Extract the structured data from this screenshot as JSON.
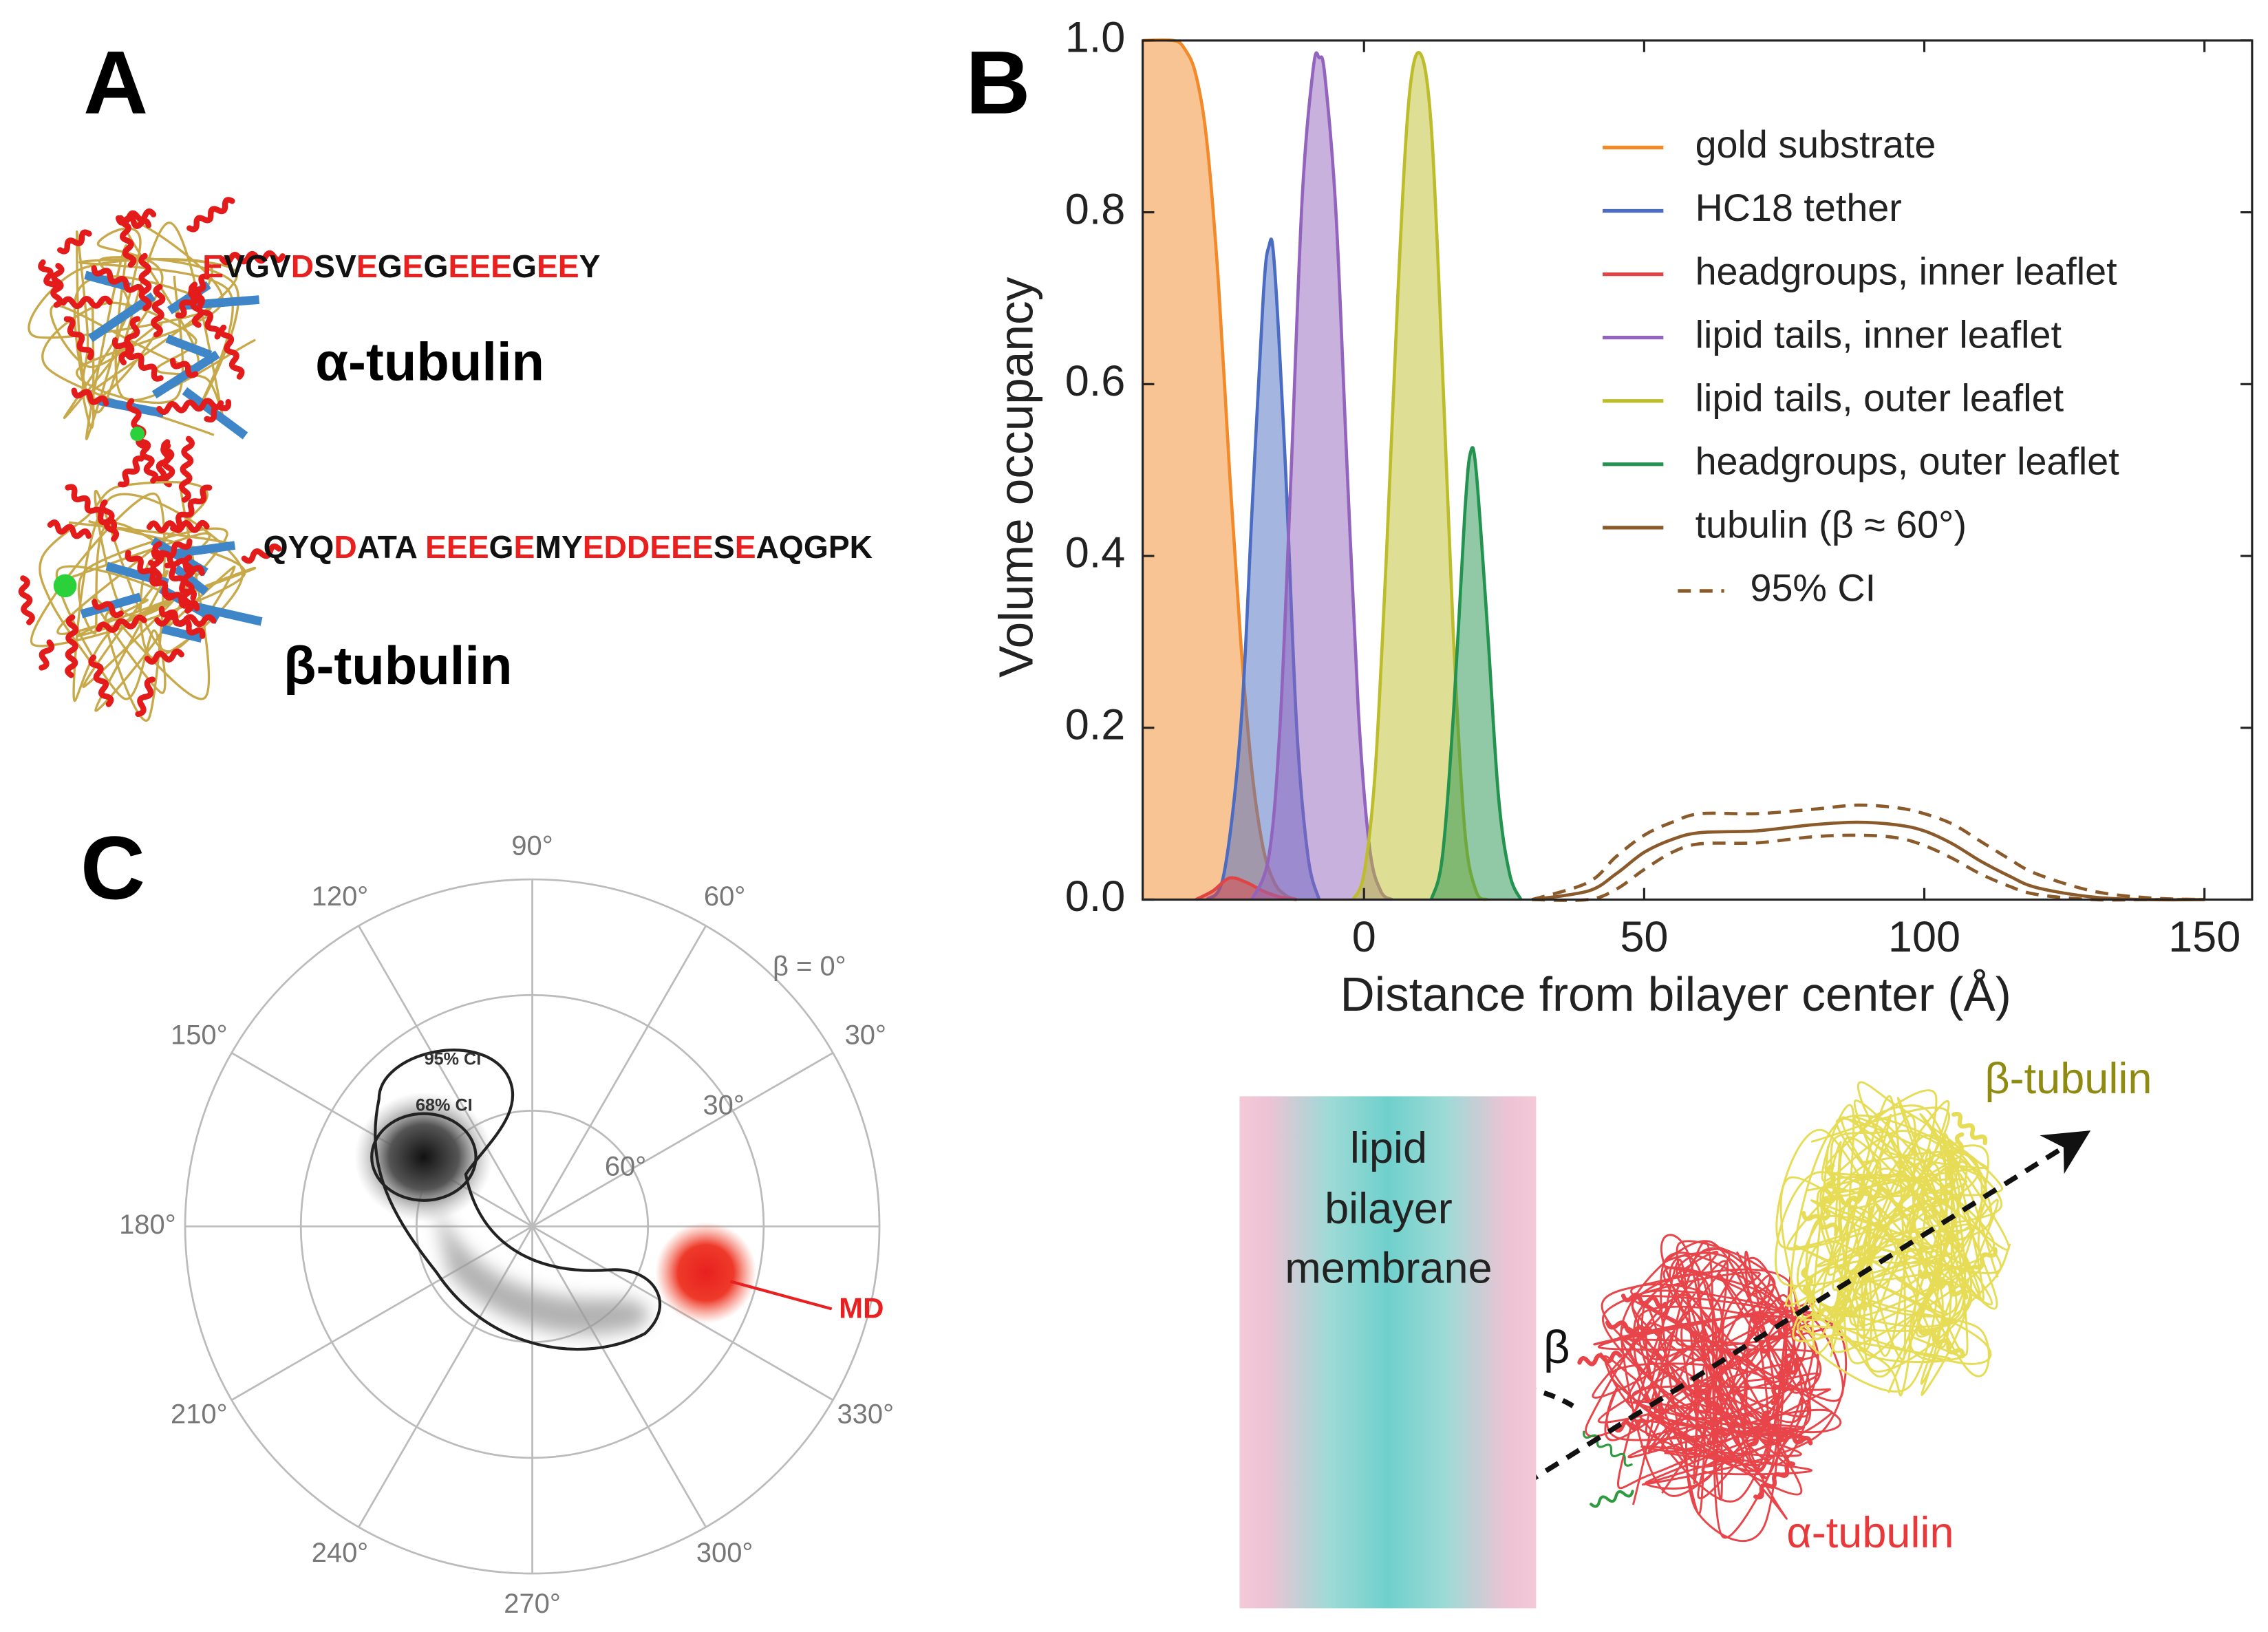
{
  "panel_labels": [
    "A",
    "B",
    "C"
  ],
  "panel_a": {
    "alpha": {
      "label": "α-tubulin",
      "sequence": [
        {
          "text": "E",
          "color": "#e8201f"
        },
        {
          "text": "VGV",
          "color": "#111111"
        },
        {
          "text": "D",
          "color": "#e8201f"
        },
        {
          "text": "SV",
          "color": "#111111"
        },
        {
          "text": "E",
          "color": "#e8201f"
        },
        {
          "text": "G",
          "color": "#111111"
        },
        {
          "text": "E",
          "color": "#e8201f"
        },
        {
          "text": "G",
          "color": "#111111"
        },
        {
          "text": "EEE",
          "color": "#e8201f"
        },
        {
          "text": "G",
          "color": "#111111"
        },
        {
          "text": "EE",
          "color": "#e8201f"
        },
        {
          "text": "Y",
          "color": "#111111"
        }
      ]
    },
    "beta": {
      "label": "β-tubulin",
      "sequence": [
        {
          "text": "QYQ",
          "color": "#111111"
        },
        {
          "text": "D",
          "color": "#e8201f"
        },
        {
          "text": "ATA ",
          "color": "#111111"
        },
        {
          "text": "EEE",
          "color": "#e8201f"
        },
        {
          "text": "G",
          "color": "#111111"
        },
        {
          "text": "E",
          "color": "#e8201f"
        },
        {
          "text": "MY",
          "color": "#111111"
        },
        {
          "text": "EDDEEE",
          "color": "#e8201f"
        },
        {
          "text": "S",
          "color": "#111111"
        },
        {
          "text": "E",
          "color": "#e8201f"
        },
        {
          "text": "AQGPK",
          "color": "#111111"
        }
      ]
    }
  },
  "chart_data": [
    {
      "type": "area",
      "xlabel": "Distance from bilayer center (Å)",
      "ylabel": "Volume occupancy",
      "xlim": [
        -39.5,
        158.5
      ],
      "ylim": [
        0,
        1
      ],
      "xticks": [
        0,
        50,
        100,
        150
      ],
      "yticks": [
        {
          "value": 0,
          "label": "0.0"
        },
        {
          "value": 0.2,
          "label": "0.2"
        },
        {
          "value": 0.4,
          "label": "0.4"
        },
        {
          "value": 0.6,
          "label": "0.6"
        },
        {
          "value": 0.8,
          "label": "0.8"
        },
        {
          "value": 1,
          "label": "1.0"
        }
      ],
      "legend": "upper right",
      "fill_opacity": 0.5,
      "series": [
        {
          "name": "gold substrate",
          "color": "#f28a2a",
          "filled": true,
          "x": [
            -39.5,
            -34,
            -32,
            -30,
            -28,
            -26,
            -24,
            -22,
            -20,
            -18,
            -16,
            -14,
            -12
          ],
          "values": [
            1,
            1,
            0.99,
            0.96,
            0.88,
            0.72,
            0.5,
            0.3,
            0.15,
            0.06,
            0.02,
            0.005,
            0
          ]
        },
        {
          "name": "HC18 tether",
          "color": "#4a6cc2",
          "filled": true,
          "x": [
            -28,
            -25,
            -22,
            -20,
            -18,
            -17,
            -16,
            -14,
            -12,
            -10,
            -8
          ],
          "values": [
            0,
            0.03,
            0.2,
            0.45,
            0.7,
            0.76,
            0.74,
            0.5,
            0.2,
            0.05,
            0
          ]
        },
        {
          "name": "headgroups, inner leaflet",
          "color": "#e04545",
          "filled": true,
          "x": [
            -30,
            -27,
            -24,
            -21,
            -18,
            -15,
            -12
          ],
          "values": [
            0,
            0.01,
            0.025,
            0.02,
            0.01,
            0.003,
            0
          ]
        },
        {
          "name": "lipid tails, inner leaflet",
          "color": "#9364bd",
          "filled": true,
          "x": [
            -20,
            -17,
            -15,
            -13,
            -11,
            -9,
            -8,
            -7,
            -5,
            -3,
            -1,
            1,
            3,
            5
          ],
          "values": [
            0,
            0.05,
            0.2,
            0.5,
            0.82,
            0.97,
            0.98,
            0.96,
            0.8,
            0.5,
            0.22,
            0.06,
            0.01,
            0
          ]
        },
        {
          "name": "lipid tails, outer leaflet",
          "color": "#bdbd2c",
          "filled": true,
          "x": [
            -2,
            0,
            2,
            4,
            6,
            8,
            10,
            12,
            14,
            16,
            18,
            20,
            22
          ],
          "values": [
            0,
            0.03,
            0.15,
            0.4,
            0.7,
            0.93,
            0.985,
            0.9,
            0.62,
            0.3,
            0.08,
            0.01,
            0
          ]
        },
        {
          "name": "headgroups, outer leaflet",
          "color": "#23934f",
          "filled": true,
          "x": [
            12,
            14,
            16,
            18,
            19,
            20,
            22,
            24,
            26,
            28
          ],
          "values": [
            0,
            0.05,
            0.22,
            0.45,
            0.52,
            0.5,
            0.32,
            0.12,
            0.03,
            0
          ]
        },
        {
          "name": "tubulin (β ≈ 60°)",
          "color": "#8b5a2b",
          "filled": false,
          "x": [
            30,
            40,
            45,
            50,
            55,
            60,
            70,
            80,
            88,
            95,
            100,
            105,
            110,
            115,
            120,
            130,
            140,
            150
          ],
          "values": [
            0,
            0.01,
            0.03,
            0.055,
            0.07,
            0.078,
            0.08,
            0.087,
            0.09,
            0.087,
            0.08,
            0.065,
            0.045,
            0.028,
            0.014,
            0.003,
            0,
            0
          ]
        },
        {
          "name": "95% CI",
          "color": "#8b5a2b",
          "filled": false,
          "dashed": true,
          "x": [
            30,
            40,
            45,
            50,
            55,
            60,
            70,
            80,
            88,
            95,
            100,
            105,
            110,
            115,
            120,
            130,
            140,
            150
          ],
          "upper": [
            0,
            0.02,
            0.05,
            0.075,
            0.09,
            0.1,
            0.1,
            0.105,
            0.11,
            0.107,
            0.1,
            0.088,
            0.068,
            0.048,
            0.03,
            0.01,
            0.002,
            0
          ],
          "lower": [
            0,
            0,
            0.012,
            0.035,
            0.055,
            0.065,
            0.066,
            0.073,
            0.075,
            0.072,
            0.063,
            0.048,
            0.03,
            0.016,
            0.006,
            0,
            0,
            0
          ]
        }
      ]
    },
    {
      "type": "polar",
      "rlim": [
        90,
        0
      ],
      "rticks": [
        {
          "value": 60,
          "label": "60°"
        },
        {
          "value": 30,
          "label": "30°"
        },
        {
          "value": 0,
          "label": "β = 0°"
        }
      ],
      "angle_ticks": [
        {
          "value": 0,
          "label": null
        },
        {
          "value": 30,
          "label": "30°"
        },
        {
          "value": 60,
          "label": "60°"
        },
        {
          "value": 90,
          "label": "90°"
        },
        {
          "value": 120,
          "label": "120°"
        },
        {
          "value": 150,
          "label": "150°"
        },
        {
          "value": 180,
          "label": "180°"
        },
        {
          "value": 210,
          "label": "210°"
        },
        {
          "value": 240,
          "label": "240°"
        },
        {
          "value": 270,
          "label": "270°"
        },
        {
          "value": 300,
          "label": "300°"
        },
        {
          "value": 330,
          "label": "330°"
        }
      ],
      "annotations": {
        "ci95": "95% CI",
        "ci68": "68% CI",
        "md": "MD"
      }
    }
  ],
  "panel_d": {
    "membrane_label": [
      "lipid",
      "bilayer",
      "membrane"
    ],
    "angle_label": "β",
    "beta_label": "β-tubulin",
    "alpha_label": "α-tubulin"
  }
}
